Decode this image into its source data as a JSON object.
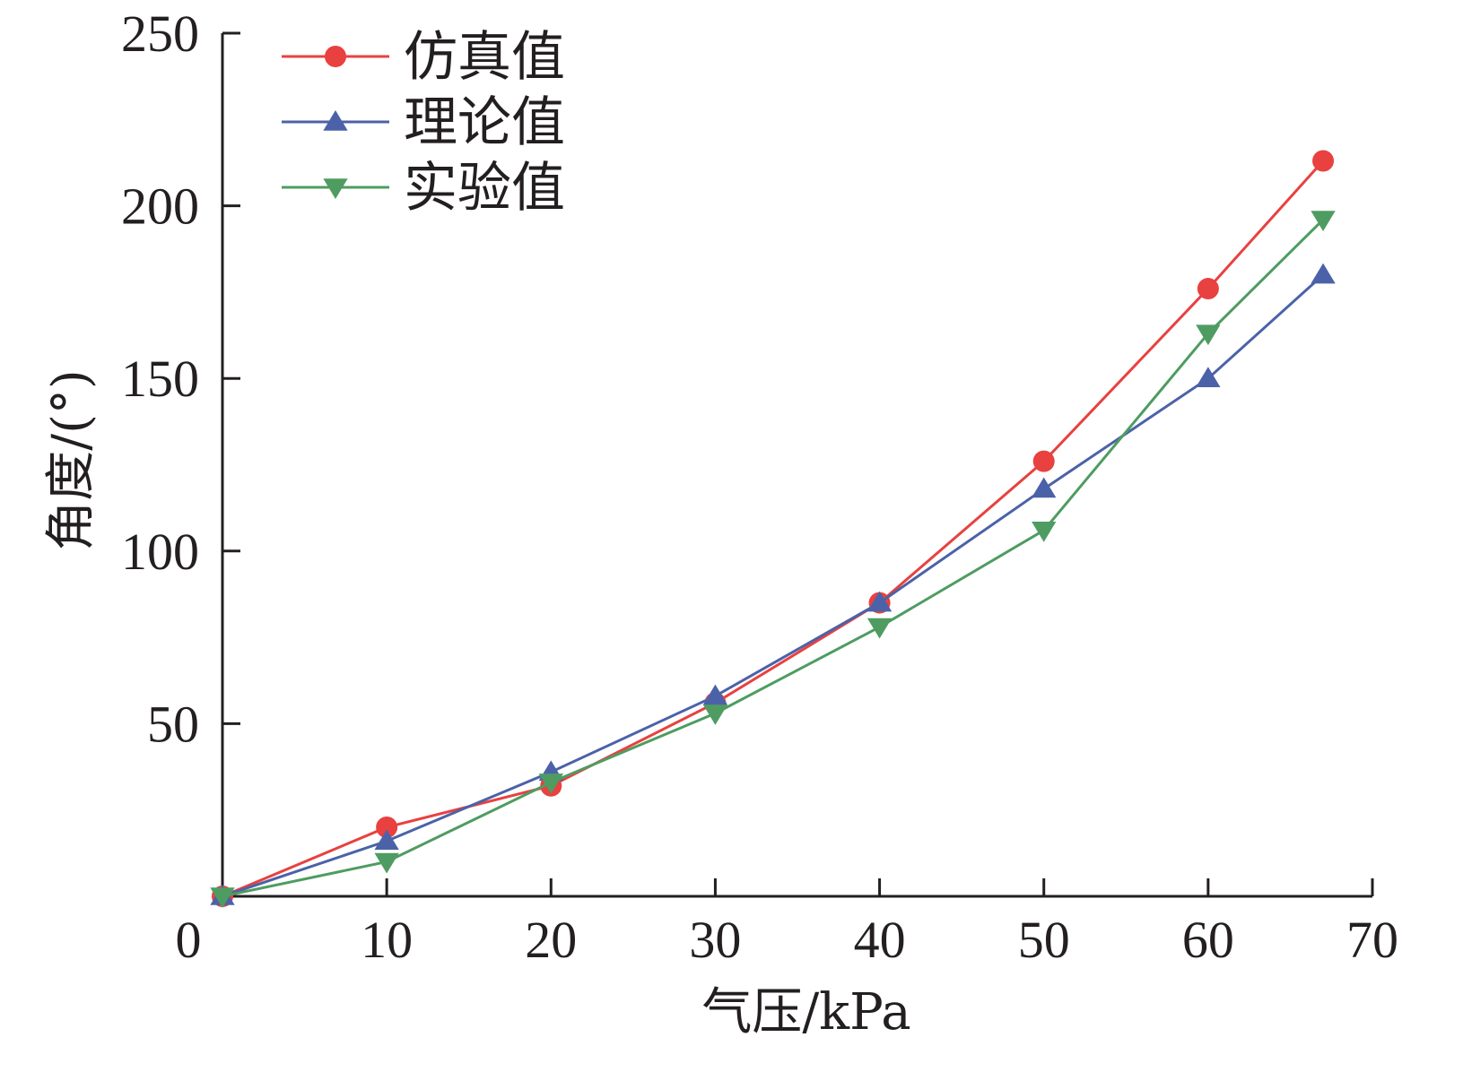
{
  "chart_data": {
    "type": "line",
    "xlabel": "气压/kPa",
    "ylabel": "角度/(°)",
    "xlim": [
      0,
      70
    ],
    "ylim": [
      0,
      250
    ],
    "x_ticks": [
      0,
      10,
      20,
      30,
      40,
      50,
      60,
      70
    ],
    "y_ticks": [
      50,
      100,
      150,
      200,
      250
    ],
    "grid": false,
    "legend_position": "top-left",
    "series": [
      {
        "name": "仿真值",
        "color": "#e8413f",
        "marker": "circle",
        "x": [
          0,
          10,
          20,
          30,
          40,
          50,
          60,
          67
        ],
        "y": [
          0,
          20,
          32,
          56,
          85,
          126,
          176,
          213
        ]
      },
      {
        "name": "理论值",
        "color": "#4b62a8",
        "marker": "triangle-up",
        "x": [
          0,
          10,
          20,
          30,
          40,
          50,
          60,
          67
        ],
        "y": [
          0,
          16,
          36,
          58,
          85,
          118,
          150,
          180
        ]
      },
      {
        "name": "实验值",
        "color": "#4e9c61",
        "marker": "triangle-down",
        "x": [
          0,
          10,
          20,
          30,
          40,
          50,
          60,
          67
        ],
        "y": [
          0,
          10,
          33,
          53,
          78,
          106,
          163,
          196
        ]
      }
    ]
  }
}
